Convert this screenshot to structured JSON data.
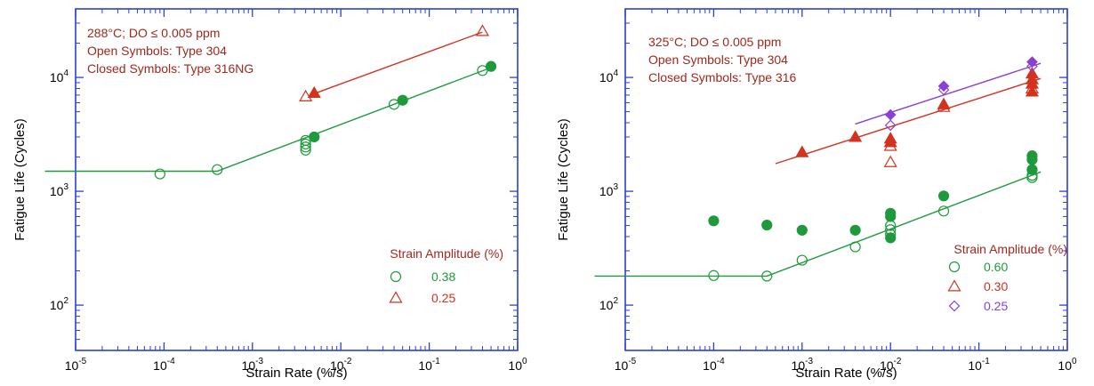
{
  "colors": {
    "frame": "#2a3fd6",
    "text_red": "#a0281e",
    "green": "#1e9a3c",
    "red": "#d2321e",
    "purple": "#8a3fd6"
  },
  "chart_data": [
    {
      "type": "scatter",
      "xlabel": "Strain Rate (%/s)",
      "ylabel": "Fatigue Life (Cycles)",
      "x_scale": "log",
      "y_scale": "log",
      "xlim": [
        1e-05,
        1
      ],
      "ylim": [
        40,
        40000
      ],
      "x_ticks": [
        {
          "base": "10",
          "exp": "-5"
        },
        {
          "base": "10",
          "exp": "-4"
        },
        {
          "base": "10",
          "exp": "-3"
        },
        {
          "base": "10",
          "exp": "-2"
        },
        {
          "base": "10",
          "exp": "-1"
        },
        {
          "base": "10",
          "exp": "0"
        }
      ],
      "y_ticks": [
        {
          "base": "10",
          "exp": "2"
        },
        {
          "base": "10",
          "exp": "3"
        },
        {
          "base": "10",
          "exp": "4"
        }
      ],
      "annotations": [
        "288°C; DO ≤ 0.005 ppm",
        "Open Symbols: Type 304",
        "Closed Symbols: Type 316NG"
      ],
      "legend_title": "Strain Amplitude (%)",
      "legend_placement": "bottom-right",
      "legend": [
        {
          "label": "0.38",
          "marker": "circle",
          "color": "#1e9a3c"
        },
        {
          "label": "0.25",
          "marker": "triangle",
          "color": "#d2321e"
        }
      ],
      "series": [
        {
          "amplitude": "0.38",
          "material": "Type 304",
          "marker": "circle",
          "filled": false,
          "color": "#1e9a3c",
          "points": [
            [
              9e-05,
              1420
            ],
            [
              0.0004,
              1550
            ],
            [
              0.004,
              2300
            ],
            [
              0.004,
              2450
            ],
            [
              0.004,
              2600
            ],
            [
              0.004,
              2800
            ],
            [
              0.04,
              5800
            ],
            [
              0.4,
              11500
            ]
          ]
        },
        {
          "amplitude": "0.38",
          "material": "Type 316NG",
          "marker": "circle",
          "filled": true,
          "color": "#1e9a3c",
          "points": [
            [
              0.005,
              3000
            ],
            [
              0.05,
              6300
            ],
            [
              0.5,
              12500
            ]
          ]
        },
        {
          "amplitude": "0.25",
          "material": "Type 304",
          "marker": "triangle",
          "filled": false,
          "color": "#d2321e",
          "points": [
            [
              0.004,
              6800
            ],
            [
              0.4,
              25500
            ]
          ]
        },
        {
          "amplitude": "0.25",
          "material": "Type 316NG",
          "marker": "triangle",
          "filled": true,
          "color": "#d2321e",
          "points": [
            [
              0.005,
              7300
            ]
          ]
        }
      ],
      "fit_lines": [
        {
          "color": "#1e9a3c",
          "points": [
            [
              4.5e-06,
              1500
            ],
            [
              0.0004,
              1500
            ],
            [
              0.5,
              12200
            ]
          ]
        },
        {
          "color": "#d2321e",
          "points": [
            [
              0.005,
              7200
            ],
            [
              0.4,
              25000
            ]
          ]
        }
      ]
    },
    {
      "type": "scatter",
      "xlabel": "Strain Rate (%/s)",
      "ylabel": "Fatigue Life (Cycles)",
      "x_scale": "log",
      "y_scale": "log",
      "xlim": [
        1e-05,
        1
      ],
      "ylim": [
        40,
        40000
      ],
      "x_ticks": [
        {
          "base": "10",
          "exp": "-5"
        },
        {
          "base": "10",
          "exp": "-4"
        },
        {
          "base": "10",
          "exp": "-3"
        },
        {
          "base": "10",
          "exp": "-2"
        },
        {
          "base": "10",
          "exp": "-1"
        },
        {
          "base": "10",
          "exp": "0"
        }
      ],
      "y_ticks": [
        {
          "base": "10",
          "exp": "2"
        },
        {
          "base": "10",
          "exp": "3"
        },
        {
          "base": "10",
          "exp": "4"
        }
      ],
      "annotations": [
        "325°C; DO ≤ 0.005 ppm",
        "Open Symbols: Type 304",
        "Closed Symbols: Type 316"
      ],
      "legend_title": "Strain Amplitude (%)",
      "legend_placement": "bottom-right",
      "legend": [
        {
          "label": "0.60",
          "marker": "circle",
          "color": "#1e9a3c"
        },
        {
          "label": "0.30",
          "marker": "triangle",
          "color": "#d2321e"
        },
        {
          "label": "0.25",
          "marker": "diamond",
          "color": "#8a3fd6"
        }
      ],
      "series": [
        {
          "amplitude": "0.60",
          "material": "Type 304",
          "marker": "circle",
          "filled": false,
          "color": "#1e9a3c",
          "points": [
            [
              0.0001,
              182
            ],
            [
              0.0004,
              180
            ],
            [
              0.001,
              248
            ],
            [
              0.004,
              325
            ],
            [
              0.01,
              420
            ],
            [
              0.01,
              460
            ],
            [
              0.01,
              500
            ],
            [
              0.04,
              670
            ],
            [
              0.4,
              1320
            ],
            [
              0.4,
              1380
            ]
          ]
        },
        {
          "amplitude": "0.60",
          "material": "Type 316",
          "marker": "circle",
          "filled": true,
          "color": "#1e9a3c",
          "points": [
            [
              0.0001,
              550
            ],
            [
              0.0004,
              505
            ],
            [
              0.001,
              455
            ],
            [
              0.004,
              455
            ],
            [
              0.01,
              390
            ],
            [
              0.01,
              600
            ],
            [
              0.01,
              640
            ],
            [
              0.04,
              910
            ],
            [
              0.4,
              1550
            ],
            [
              0.4,
              1900
            ],
            [
              0.4,
              2050
            ]
          ]
        },
        {
          "amplitude": "0.30",
          "material": "Type 304",
          "marker": "triangle",
          "filled": false,
          "color": "#d2321e",
          "points": [
            [
              0.01,
              1800
            ],
            [
              0.01,
              2500
            ],
            [
              0.04,
              5500
            ],
            [
              0.4,
              8000
            ]
          ]
        },
        {
          "amplitude": "0.30",
          "material": "Type 316",
          "marker": "triangle",
          "filled": true,
          "color": "#d2321e",
          "points": [
            [
              0.001,
              2200
            ],
            [
              0.004,
              3000
            ],
            [
              0.01,
              2700
            ],
            [
              0.01,
              2900
            ],
            [
              0.04,
              5800
            ],
            [
              0.4,
              7500
            ],
            [
              0.4,
              8800
            ],
            [
              0.4,
              9600
            ],
            [
              0.4,
              10800
            ]
          ]
        },
        {
          "amplitude": "0.25",
          "material": "Type 304",
          "marker": "diamond",
          "filled": false,
          "color": "#8a3fd6",
          "points": [
            [
              0.01,
              3800
            ],
            [
              0.04,
              7800
            ],
            [
              0.4,
              12500
            ]
          ]
        },
        {
          "amplitude": "0.25",
          "material": "Type 316",
          "marker": "diamond",
          "filled": true,
          "color": "#8a3fd6",
          "points": [
            [
              0.01,
              4700
            ],
            [
              0.04,
              8400
            ],
            [
              0.4,
              13700
            ]
          ]
        }
      ],
      "fit_lines": [
        {
          "color": "#1e9a3c",
          "points": [
            [
              4.5e-06,
              180
            ],
            [
              0.0004,
              180
            ],
            [
              0.5,
              1480
            ]
          ]
        },
        {
          "color": "#d2321e",
          "points": [
            [
              0.0005,
              1750
            ],
            [
              0.5,
              9800
            ]
          ]
        },
        {
          "color": "#8a3fd6",
          "points": [
            [
              0.004,
              3900
            ],
            [
              0.5,
              13300
            ]
          ]
        }
      ]
    }
  ]
}
